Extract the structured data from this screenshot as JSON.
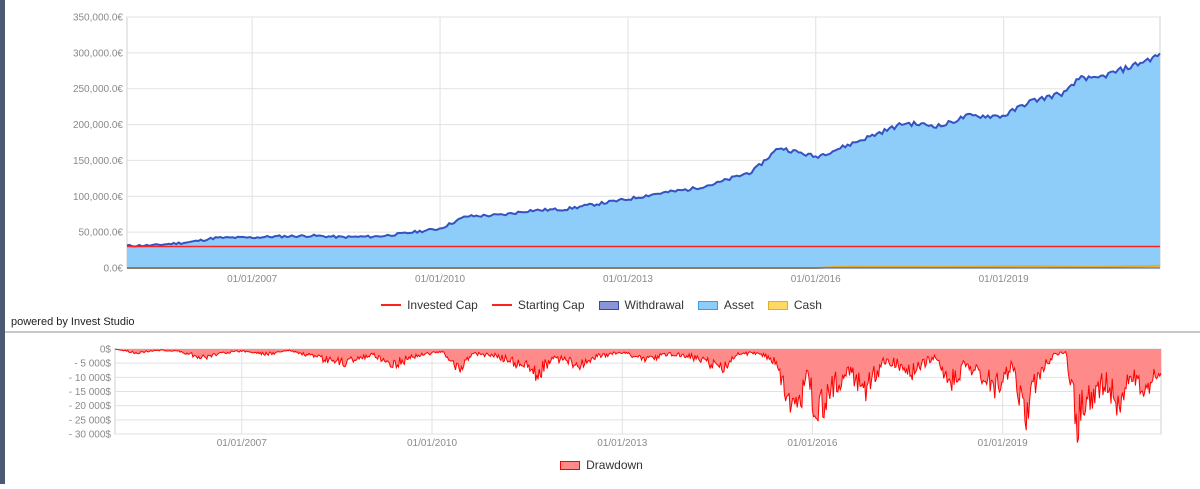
{
  "footer": {
    "powered_by": "powered by Invest Studio"
  },
  "colors": {
    "invested_cap": "#ff2020",
    "starting_cap": "#ff2020",
    "withdrawal_fill": "#8a94d8",
    "withdrawal_stroke": "#3a46a8",
    "asset_fill": "#8ecdfa",
    "asset_stroke": "#3452c0",
    "cash_fill": "#ffd966",
    "cash_stroke": "#e0b020",
    "drawdown_fill": "#ff8a8a",
    "drawdown_stroke": "#ff0000",
    "grid": "#e2e2e2",
    "tick_text": "#8a8a8a"
  },
  "chart_data": [
    {
      "type": "area",
      "title": "",
      "xlabel": "",
      "ylabel": "",
      "x_range": [
        "2005-01-01",
        "2021-07-01"
      ],
      "x_ticks": [
        "01/01/2007",
        "01/01/2010",
        "01/01/2013",
        "01/01/2016",
        "01/01/2019"
      ],
      "y_ticks": [
        "0.0€",
        "50,000.0€",
        "100,000.0€",
        "150,000.0€",
        "200,000.0€",
        "250,000.0€",
        "300,000.0€",
        "350,000.0€"
      ],
      "ylim": [
        0,
        350000
      ],
      "legend_position": "bottom-center",
      "grid": true,
      "legend": [
        "Invested Cap",
        "Starting Cap",
        "Withdrawal",
        "Asset",
        "Cash"
      ],
      "series": [
        {
          "name": "Asset",
          "type": "area",
          "points": [
            [
              "2005-01-01",
              31000
            ],
            [
              "2005-06-01",
              31500
            ],
            [
              "2006-01-01",
              36000
            ],
            [
              "2006-06-01",
              42000
            ],
            [
              "2007-01-01",
              42500
            ],
            [
              "2007-06-01",
              44000
            ],
            [
              "2008-01-01",
              45000
            ],
            [
              "2008-06-01",
              43000
            ],
            [
              "2009-01-01",
              44000
            ],
            [
              "2009-06-01",
              48000
            ],
            [
              "2010-01-01",
              55000
            ],
            [
              "2010-06-01",
              72000
            ],
            [
              "2011-01-01",
              74000
            ],
            [
              "2011-06-01",
              80000
            ],
            [
              "2012-01-01",
              82000
            ],
            [
              "2012-06-01",
              88000
            ],
            [
              "2013-01-01",
              96000
            ],
            [
              "2013-06-01",
              103000
            ],
            [
              "2014-01-01",
              110000
            ],
            [
              "2014-06-01",
              118000
            ],
            [
              "2015-01-01",
              135000
            ],
            [
              "2015-06-01",
              168000
            ],
            [
              "2016-01-01",
              155000
            ],
            [
              "2016-06-01",
              168000
            ],
            [
              "2017-01-01",
              188000
            ],
            [
              "2017-06-01",
              202000
            ],
            [
              "2018-01-01",
              198000
            ],
            [
              "2018-06-01",
              212000
            ],
            [
              "2019-01-01",
              212000
            ],
            [
              "2019-06-01",
              232000
            ],
            [
              "2020-01-01",
              245000
            ],
            [
              "2020-04-01",
              268000
            ],
            [
              "2020-06-01",
              262000
            ],
            [
              "2021-01-01",
              280000
            ],
            [
              "2021-07-01",
              297000
            ]
          ]
        },
        {
          "name": "Invested Cap",
          "type": "line",
          "points": [
            [
              "2005-01-01",
              30000
            ],
            [
              "2021-07-01",
              30000
            ]
          ]
        },
        {
          "name": "Starting Cap",
          "type": "line",
          "points": [
            [
              "2005-01-01",
              30000
            ],
            [
              "2021-07-01",
              30000
            ]
          ]
        },
        {
          "name": "Withdrawal",
          "type": "area",
          "points": [
            [
              "2005-01-01",
              0
            ],
            [
              "2021-07-01",
              0
            ]
          ]
        },
        {
          "name": "Cash",
          "type": "area",
          "points": [
            [
              "2005-01-01",
              0
            ],
            [
              "2016-01-01",
              0
            ],
            [
              "2016-06-01",
              2000
            ],
            [
              "2018-01-01",
              1500
            ],
            [
              "2019-06-01",
              2500
            ],
            [
              "2020-06-01",
              1500
            ],
            [
              "2021-07-01",
              3000
            ]
          ]
        }
      ]
    },
    {
      "type": "area",
      "title": "",
      "xlabel": "",
      "ylabel": "",
      "x_range": [
        "2005-01-01",
        "2021-07-01"
      ],
      "x_ticks": [
        "01/01/2007",
        "01/01/2010",
        "01/01/2013",
        "01/01/2016",
        "01/01/2019"
      ],
      "y_ticks": [
        "0$",
        "- 5 000$",
        "- 10 000$",
        "- 15 000$",
        "- 20 000$",
        "- 25 000$",
        "- 30 000$"
      ],
      "ylim": [
        -30000,
        0
      ],
      "legend_position": "bottom-center",
      "grid": true,
      "legend": [
        "Drawdown"
      ],
      "series": [
        {
          "name": "Drawdown",
          "type": "area",
          "points": [
            [
              "2005-01-01",
              0
            ],
            [
              "2005-05-01",
              -1500
            ],
            [
              "2005-09-01",
              -500
            ],
            [
              "2006-01-01",
              -800
            ],
            [
              "2006-06-01",
              -3500
            ],
            [
              "2006-09-01",
              -1500
            ],
            [
              "2007-01-01",
              -800
            ],
            [
              "2007-06-01",
              -2000
            ],
            [
              "2007-10-01",
              -500
            ],
            [
              "2008-03-01",
              -3500
            ],
            [
              "2008-08-01",
              -5500
            ],
            [
              "2008-11-01",
              -3500
            ],
            [
              "2009-02-01",
              -2500
            ],
            [
              "2009-06-01",
              -6000
            ],
            [
              "2009-10-01",
              -2500
            ],
            [
              "2010-03-01",
              -1000
            ],
            [
              "2010-06-01",
              -7500
            ],
            [
              "2010-09-01",
              -2000
            ],
            [
              "2011-01-01",
              -2500
            ],
            [
              "2011-06-01",
              -6500
            ],
            [
              "2011-09-01",
              -9500
            ],
            [
              "2011-12-01",
              -3500
            ],
            [
              "2012-05-01",
              -6000
            ],
            [
              "2012-09-01",
              -2500
            ],
            [
              "2013-01-01",
              -1500
            ],
            [
              "2013-06-01",
              -4000
            ],
            [
              "2013-10-01",
              -2000
            ],
            [
              "2014-02-01",
              -3000
            ],
            [
              "2014-08-01",
              -7500
            ],
            [
              "2014-11-01",
              -2000
            ],
            [
              "2015-03-01",
              -1500
            ],
            [
              "2015-06-01",
              -5000
            ],
            [
              "2015-08-01",
              -16000
            ],
            [
              "2015-10-01",
              -24000
            ],
            [
              "2015-12-01",
              -12000
            ],
            [
              "2016-02-01",
              -26000
            ],
            [
              "2016-05-01",
              -14000
            ],
            [
              "2016-08-01",
              -9000
            ],
            [
              "2016-11-01",
              -15000
            ],
            [
              "2017-03-01",
              -4000
            ],
            [
              "2017-08-01",
              -9000
            ],
            [
              "2017-12-01",
              -3000
            ],
            [
              "2018-03-01",
              -14000
            ],
            [
              "2018-06-01",
              -6000
            ],
            [
              "2018-10-01",
              -11000
            ],
            [
              "2018-12-01",
              -15000
            ],
            [
              "2019-03-01",
              -6000
            ],
            [
              "2019-05-01",
              -26000
            ],
            [
              "2019-08-01",
              -9000
            ],
            [
              "2019-11-01",
              -2000
            ],
            [
              "2020-01-01",
              -1500
            ],
            [
              "2020-03-01",
              -28500
            ],
            [
              "2020-05-01",
              -20000
            ],
            [
              "2020-08-01",
              -13000
            ],
            [
              "2020-11-01",
              -21000
            ],
            [
              "2021-01-01",
              -10000
            ],
            [
              "2021-04-01",
              -16000
            ],
            [
              "2021-07-01",
              -7000
            ]
          ]
        }
      ]
    }
  ]
}
